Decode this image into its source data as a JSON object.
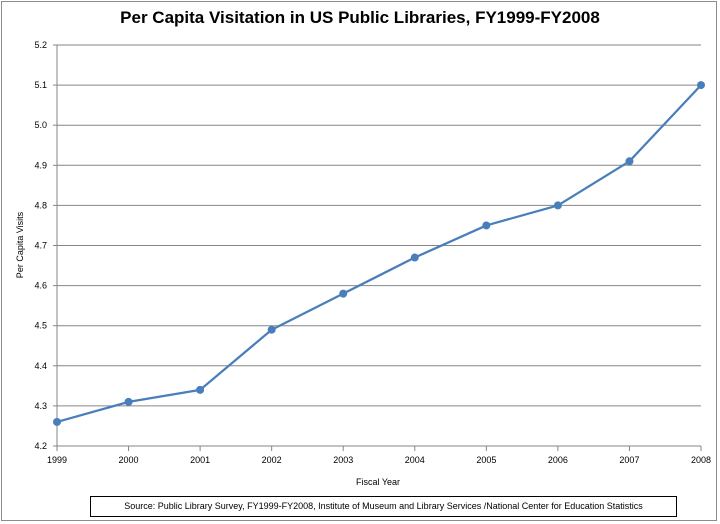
{
  "chart_data": {
    "type": "line",
    "title": "Per Capita Visitation in US Public Libraries, FY1999-FY2008",
    "xlabel": "Fiscal Year",
    "ylabel": "Per Capita Visits",
    "categories": [
      "1999",
      "2000",
      "2001",
      "2002",
      "2003",
      "2004",
      "2005",
      "2006",
      "2007",
      "2008"
    ],
    "series": [
      {
        "name": "Per Capita Visits",
        "values": [
          4.26,
          4.31,
          4.34,
          4.49,
          4.58,
          4.67,
          4.75,
          4.8,
          4.91,
          5.1
        ]
      }
    ],
    "ylim": [
      4.2,
      5.2
    ],
    "yticks": [
      "4.2",
      "4.3",
      "4.4",
      "4.5",
      "4.6",
      "4.7",
      "4.8",
      "4.9",
      "5.0",
      "5.1",
      "5.2"
    ],
    "grid": true,
    "legend": "none",
    "line_color": "#4a7ebb",
    "grid_color": "#868686",
    "source": "Source: Public Library Survey, FY1999-FY2008, Institute  of Museum and Library Services /National Center for Education Statistics"
  }
}
